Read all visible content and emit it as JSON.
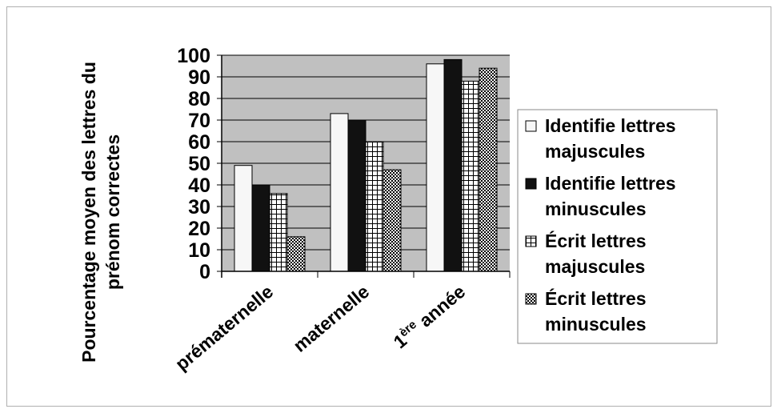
{
  "chart_data": {
    "type": "bar",
    "ylabel_lines": [
      "Pourcentage moyen des lettres du",
      "prénom correctes"
    ],
    "categories": [
      {
        "label": "prématernelle",
        "sup": ""
      },
      {
        "label": "maternelle",
        "sup": ""
      },
      {
        "label": "année",
        "prefix": "1",
        "sup": "ère"
      }
    ],
    "series": [
      {
        "name_lines": [
          "Identifie lettres",
          "majuscules"
        ],
        "values": [
          49,
          73,
          96
        ],
        "pattern": "white"
      },
      {
        "name_lines": [
          "Identifie lettres",
          "minuscules"
        ],
        "values": [
          40,
          70,
          98
        ],
        "pattern": "black"
      },
      {
        "name_lines": [
          "Écrit lettres",
          "majuscules"
        ],
        "values": [
          36,
          60,
          88
        ],
        "pattern": "grid"
      },
      {
        "name_lines": [
          "Écrit lettres",
          "minuscules"
        ],
        "values": [
          16,
          47,
          94
        ],
        "pattern": "checker"
      }
    ],
    "yticks": [
      "0",
      "10",
      "20",
      "30",
      "40",
      "50",
      "60",
      "70",
      "80",
      "90",
      "100"
    ],
    "ylim": [
      0,
      100
    ],
    "grid": true,
    "legend_position": "right",
    "colors": {
      "plot_bg": "#c0c0c0",
      "bar_white": "#f7f7f7",
      "bar_black": "#111111"
    }
  }
}
